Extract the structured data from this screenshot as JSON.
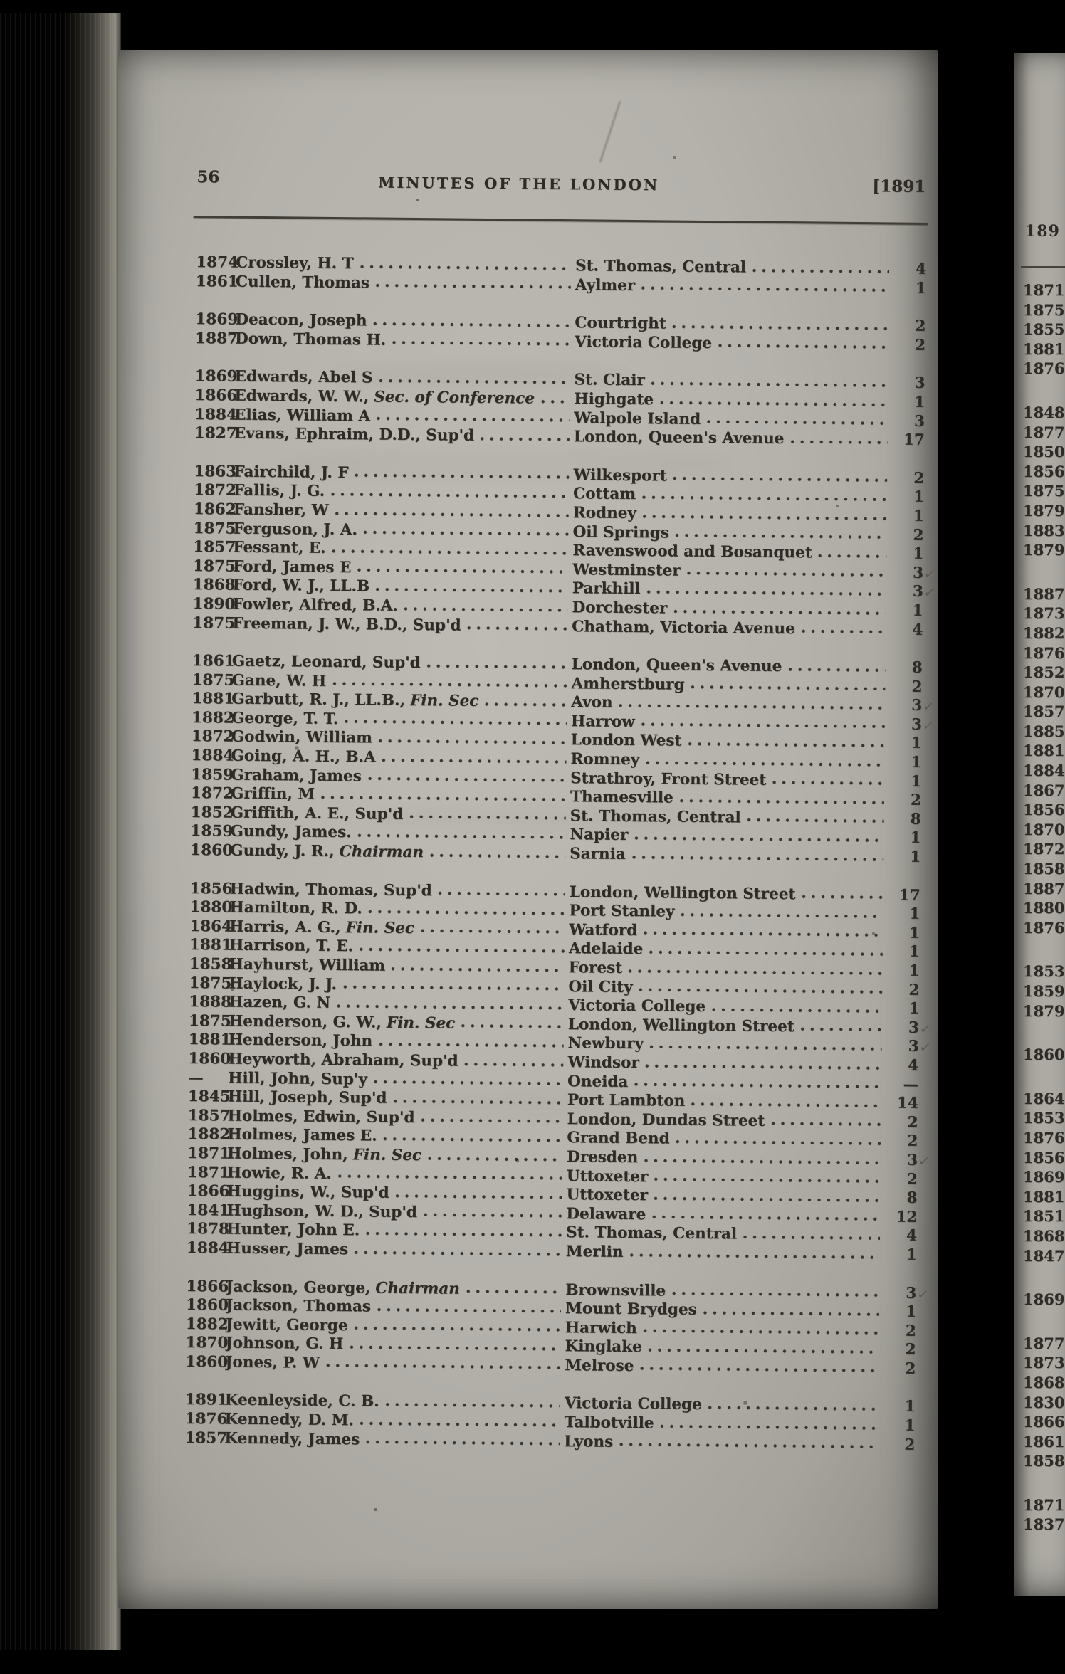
{
  "page": {
    "page_number": "56",
    "header_title": "MINUTES OF THE LONDON",
    "header_year": "[1891",
    "columns": [
      "year_received",
      "name",
      "station",
      "years_on_station"
    ],
    "groups": [
      {
        "rows": [
          {
            "year": "1874",
            "name": "Crossley, H. T",
            "title": "",
            "location": "St. Thomas, Central",
            "count": "4",
            "check": false
          },
          {
            "year": "1861",
            "name": "Cullen, Thomas",
            "title": "",
            "location": "Aylmer",
            "count": "1",
            "check": false
          }
        ]
      },
      {
        "rows": [
          {
            "year": "1869",
            "name": "Deacon, Joseph",
            "title": "",
            "location": "Courtright",
            "count": "2",
            "check": false
          },
          {
            "year": "1887",
            "name": "Down, Thomas H.",
            "title": "",
            "location": "Victoria College",
            "count": "2",
            "check": false
          }
        ]
      },
      {
        "rows": [
          {
            "year": "1869",
            "name": "Edwards, Abel S",
            "title": "",
            "location": "St. Clair",
            "count": "3",
            "check": false
          },
          {
            "year": "1866",
            "name": "Edwards, W. W.,",
            "title": "Sec. of Conference",
            "location": "Highgate",
            "count": "1",
            "check": false
          },
          {
            "year": "1884",
            "name": "Elias, William A",
            "title": "",
            "location": "Walpole Island",
            "count": "3",
            "check": false
          },
          {
            "year": "1827",
            "name": "Evans, Ephraim, D.D., Sup'd",
            "title": "",
            "location": "London, Queen's Avenue",
            "count": "17",
            "check": false
          }
        ]
      },
      {
        "rows": [
          {
            "year": "1863",
            "name": "Fairchild, J. F",
            "title": "",
            "location": "Wilkesport",
            "count": "2",
            "check": false
          },
          {
            "year": "1872",
            "name": "Fallis, J. G.",
            "title": "",
            "location": "Cottam",
            "count": "1",
            "check": false
          },
          {
            "year": "1862",
            "name": "Fansher, W",
            "title": "",
            "location": "Rodney",
            "count": "1",
            "check": false
          },
          {
            "year": "1875",
            "name": "Ferguson, J. A.",
            "title": "",
            "location": "Oil Springs",
            "count": "2",
            "check": false
          },
          {
            "year": "1857",
            "name": "Fessant, E.",
            "title": "",
            "location": "Ravenswood and Bosanquet",
            "count": "1",
            "check": false
          },
          {
            "year": "1875",
            "name": "Ford, James E",
            "title": "",
            "location": "Westminster",
            "count": "3",
            "check": true
          },
          {
            "year": "1868",
            "name": "Ford, W. J., LL.B",
            "title": "",
            "location": "Parkhill",
            "count": "3",
            "check": true
          },
          {
            "year": "1890",
            "name": "Fowler, Alfred, B.A.",
            "title": "",
            "location": "Dorchester",
            "count": "1",
            "check": false
          },
          {
            "year": "1875",
            "name": "Freeman, J. W., B.D., Sup'd",
            "title": "",
            "location": "Chatham, Victoria Avenue",
            "count": "4",
            "check": false
          }
        ]
      },
      {
        "rows": [
          {
            "year": "1861",
            "name": "Gaetz, Leonard, Sup'd",
            "title": "",
            "location": "London, Queen's Avenue",
            "count": "8",
            "check": false
          },
          {
            "year": "1875",
            "name": "Gane, W. H",
            "title": "",
            "location": "Amherstburg",
            "count": "2",
            "check": false
          },
          {
            "year": "1881",
            "name": "Garbutt, R. J., LL.B.,",
            "title": "Fin. Sec",
            "location": "Avon",
            "count": "3",
            "check": true
          },
          {
            "year": "1882",
            "name": "George, T. T.",
            "title": "",
            "location": "Harrow",
            "count": "3",
            "check": true
          },
          {
            "year": "1872",
            "name": "Godwin, William",
            "title": "",
            "location": "London West",
            "count": "1",
            "check": false
          },
          {
            "year": "1884",
            "name": "Going, A. H., B.A",
            "title": "",
            "location": "Romney",
            "count": "1",
            "check": false
          },
          {
            "year": "1859",
            "name": "Graham, James",
            "title": "",
            "location": "Strathroy, Front Street",
            "count": "1",
            "check": false
          },
          {
            "year": "1872",
            "name": "Griffin, M",
            "title": "",
            "location": "Thamesville",
            "count": "2",
            "check": false
          },
          {
            "year": "1852",
            "name": "Griffith, A. E., Sup'd",
            "title": "",
            "location": "St. Thomas, Central",
            "count": "8",
            "check": false
          },
          {
            "year": "1859",
            "name": "Gundy, James.",
            "title": "",
            "location": "Napier",
            "count": "1",
            "check": false
          },
          {
            "year": "1860",
            "name": "Gundy, J. R.,",
            "title": "Chairman",
            "location": "Sarnia",
            "count": "1",
            "check": false
          }
        ]
      },
      {
        "rows": [
          {
            "year": "1856",
            "name": "Hadwin, Thomas, Sup'd",
            "title": "",
            "location": "London, Wellington Street",
            "count": "17",
            "check": false
          },
          {
            "year": "1880",
            "name": "Hamilton, R. D.",
            "title": "",
            "location": "Port Stanley",
            "count": "1",
            "check": false
          },
          {
            "year": "1864",
            "name": "Harris, A. G.,",
            "title": "Fin. Sec",
            "location": "Watford",
            "count": "1",
            "check": false
          },
          {
            "year": "1881",
            "name": "Harrison, T. E.",
            "title": "",
            "location": "Adelaide",
            "count": "1",
            "check": false
          },
          {
            "year": "1858",
            "name": "Hayhurst, William",
            "title": "",
            "location": "Forest",
            "count": "1",
            "check": false
          },
          {
            "year": "1875",
            "name": "Haylock, J. J.",
            "title": "",
            "location": "Oil City",
            "count": "2",
            "check": false
          },
          {
            "year": "1888",
            "name": "Hazen, G. N",
            "title": "",
            "location": "Victoria College",
            "count": "1",
            "check": false
          },
          {
            "year": "1875",
            "name": "Henderson, G. W.,",
            "title": "Fin. Sec",
            "location": "London, Wellington Street",
            "count": "3",
            "check": true
          },
          {
            "year": "1881",
            "name": "Henderson, John",
            "title": "",
            "location": "Newbury",
            "count": "3",
            "check": true
          },
          {
            "year": "1860",
            "name": "Heyworth, Abraham, Sup'd",
            "title": "",
            "location": "Windsor",
            "count": "4",
            "check": false
          },
          {
            "year": "—",
            "name": "Hill, John, Sup'y",
            "title": "",
            "location": "Oneida",
            "count": "—",
            "check": false
          },
          {
            "year": "1845",
            "name": "Hill, Joseph, Sup'd",
            "title": "",
            "location": "Port Lambton",
            "count": "14",
            "check": false
          },
          {
            "year": "1857",
            "name": "Holmes, Edwin, Sup'd",
            "title": "",
            "location": "London, Dundas Street",
            "count": "2",
            "check": false
          },
          {
            "year": "1882",
            "name": "Holmes, James E.",
            "title": "",
            "location": "Grand Bend",
            "count": "2",
            "check": false
          },
          {
            "year": "1871",
            "name": "Holmes, John,",
            "title": "Fin. Sec",
            "location": "Dresden",
            "count": "3",
            "check": true
          },
          {
            "year": "1871",
            "name": "Howie, R. A.",
            "title": "",
            "location": "Uttoxeter",
            "count": "2",
            "check": false
          },
          {
            "year": "1866",
            "name": "Huggins, W., Sup'd",
            "title": "",
            "location": "Uttoxeter",
            "count": "8",
            "check": false
          },
          {
            "year": "1841",
            "name": "Hughson, W. D., Sup'd",
            "title": "",
            "location": "Delaware",
            "count": "12",
            "check": false
          },
          {
            "year": "1878",
            "name": "Hunter, John E.",
            "title": "",
            "location": "St. Thomas, Central",
            "count": "4",
            "check": false
          },
          {
            "year": "1884",
            "name": "Husser, James",
            "title": "",
            "location": "Merlin",
            "count": "1",
            "check": false
          }
        ]
      },
      {
        "rows": [
          {
            "year": "1866",
            "name": "Jackson, George,",
            "title": "Chairman",
            "location": "Brownsville",
            "count": "3",
            "check": true
          },
          {
            "year": "1860",
            "name": "Jackson, Thomas",
            "title": "",
            "location": "Mount Brydges",
            "count": "1",
            "check": false
          },
          {
            "year": "1882",
            "name": "Jewitt, George",
            "title": "",
            "location": "Harwich",
            "count": "2",
            "check": false
          },
          {
            "year": "1870",
            "name": "Johnson, G. H",
            "title": "",
            "location": "Kinglake",
            "count": "2",
            "check": false
          },
          {
            "year": "1860",
            "name": "Jones, P. W",
            "title": "",
            "location": "Melrose",
            "count": "2",
            "check": false
          }
        ]
      },
      {
        "rows": [
          {
            "year": "1891",
            "name": "Keenleyside, C. B.",
            "title": "",
            "location": "Victoria College",
            "count": "1",
            "check": false
          },
          {
            "year": "1876",
            "name": "Kennedy, D. M.",
            "title": "",
            "location": "Talbotville",
            "count": "1",
            "check": false
          },
          {
            "year": "1857",
            "name": "Kennedy, James",
            "title": "",
            "location": "Lyons",
            "count": "2",
            "check": false
          }
        ]
      }
    ]
  },
  "next_page_edge": {
    "header_fragment": "189",
    "year_groups": [
      [
        "1871",
        "1875",
        "1855",
        "1881",
        "1876"
      ],
      [
        "1848",
        "1877",
        "1850",
        "1856",
        "1875",
        "1879",
        "1883",
        "1879"
      ],
      [
        "1887",
        "1873",
        "1882",
        "1876",
        "1852",
        "1870",
        "1857",
        "1885",
        "1881",
        "1884",
        "1867",
        "1856",
        "1870",
        "1872",
        "1858",
        "1887",
        "1880",
        "1876"
      ],
      [
        "1853",
        "1859",
        "1879"
      ],
      [
        "1860"
      ],
      [
        "1864",
        "1853",
        "1876",
        "1856",
        "1869",
        "1881",
        "1851",
        "1868",
        "1847"
      ],
      [
        "1869"
      ],
      [
        "1877",
        "1873",
        "1868",
        "1830",
        "1866",
        "1861",
        "1858"
      ],
      [
        "1871",
        "1837"
      ]
    ]
  },
  "decor": {
    "pencil_check_glyph": "✓",
    "paper_color": "#b5b3ac",
    "ink_color": "#2e2b26",
    "pencil_color": "#5d5950",
    "background_color": "#000000"
  }
}
